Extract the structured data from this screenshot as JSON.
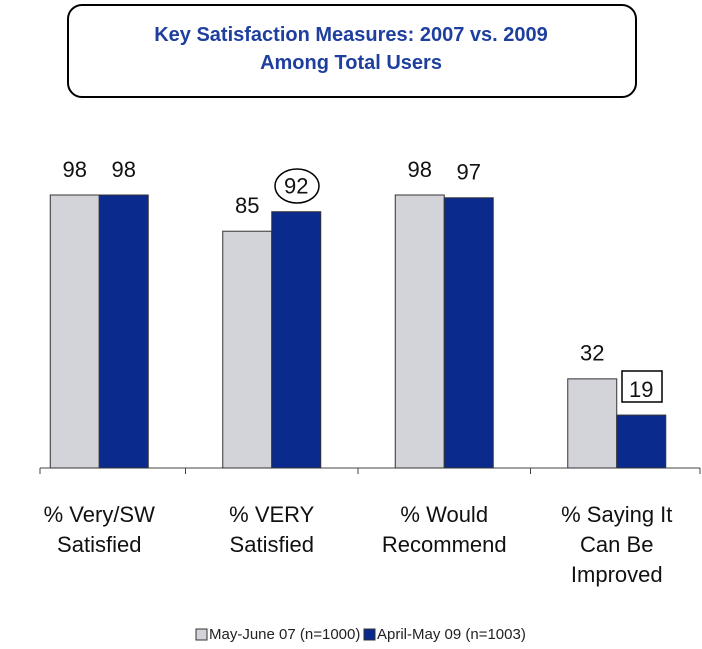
{
  "chart_data": {
    "type": "bar",
    "title": "Key Satisfaction Measures: 2007 vs. 2009\nAmong Total Users",
    "categories": [
      "% Very/SW\nSatisfied",
      "% VERY\nSatisfied",
      "% Would\nRecommend",
      "% Saying It\nCan Be\nImproved"
    ],
    "series": [
      {
        "name": "May-June 07 (n=1000)",
        "color": "#d3d3da",
        "values": [
          98,
          85,
          98,
          32
        ]
      },
      {
        "name": "April-May 09 (n=1003)",
        "color": "#0a2a8e",
        "values": [
          98,
          92,
          97,
          19
        ]
      }
    ]
  }
}
